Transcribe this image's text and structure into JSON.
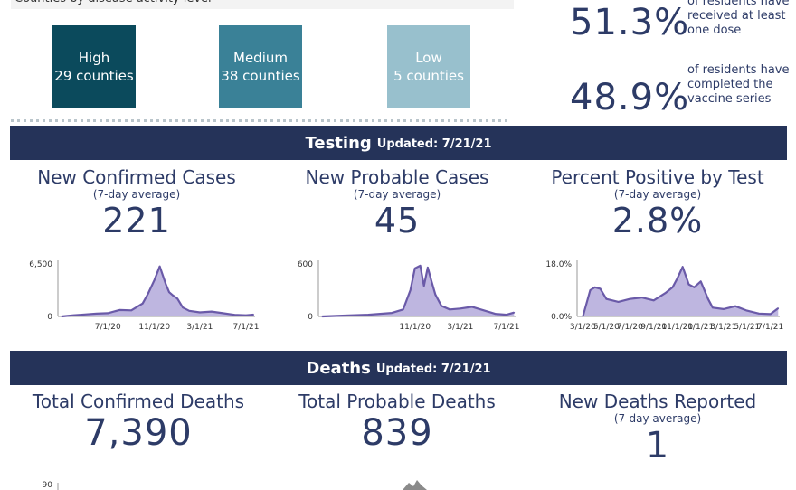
{
  "colors": {
    "band": "#253359",
    "high": "#0b4a5c",
    "medium": "#3a8197",
    "low": "#98c0cd",
    "area_fill": "#a89dd6",
    "area_line": "#6a5aa8"
  },
  "top_caption": "Counties by disease activity level",
  "activity": {
    "high": {
      "label": "High",
      "count": "29 counties"
    },
    "medium": {
      "label": "Medium",
      "count": "38 counties"
    },
    "low": {
      "label": "Low",
      "count": "5 counties"
    }
  },
  "vaccination": {
    "one_dose": {
      "pct": "51.3%",
      "desc": "of residents have received at least one dose"
    },
    "complete": {
      "pct": "48.9%",
      "desc": "of residents have completed the vaccine series"
    }
  },
  "testing": {
    "title": "Testing",
    "updated": "Updated: 7/21/21",
    "confirmed": {
      "title": "New Confirmed Cases",
      "sub": "(7-day average)",
      "value": "221"
    },
    "probable": {
      "title": "New Probable Cases",
      "sub": "(7-day average)",
      "value": "45"
    },
    "positive": {
      "title": "Percent Positive by Test",
      "sub": "(7-day average)",
      "value": "2.8%"
    }
  },
  "deaths": {
    "title": "Deaths",
    "updated": "Updated: 7/21/21",
    "confirmed": {
      "title": "Total Confirmed Deaths",
      "value": "7,390"
    },
    "probable": {
      "title": "Total Probable Deaths",
      "value": "839"
    },
    "new": {
      "title": "New Deaths Reported",
      "sub": "(7-day average)",
      "value": "1"
    }
  },
  "chart_data": [
    {
      "type": "area",
      "yticks": [
        "6,500",
        "0"
      ],
      "ylim": [
        0,
        6500
      ],
      "xticks": [
        "7/1/20",
        "11/1/20",
        "3/1/21",
        "7/1/21"
      ],
      "x": [
        "3/1/20",
        "4/1/20",
        "5/1/20",
        "6/1/20",
        "7/1/20",
        "8/1/20",
        "9/1/20",
        "10/1/20",
        "10/15/20",
        "11/1/20",
        "11/15/20",
        "12/1/20",
        "12/10/20",
        "12/20/20",
        "1/1/21",
        "1/15/21",
        "2/1/21",
        "3/1/21",
        "4/1/21",
        "5/1/21",
        "6/1/21",
        "7/1/21",
        "7/21/21"
      ],
      "values": [
        0,
        150,
        250,
        350,
        400,
        800,
        750,
        1600,
        2800,
        4500,
        6200,
        4000,
        3000,
        2600,
        2200,
        1100,
        700,
        500,
        600,
        400,
        200,
        150,
        221
      ]
    },
    {
      "type": "area",
      "yticks": [
        "600",
        "0"
      ],
      "ylim": [
        0,
        600
      ],
      "xticks": [
        "11/1/20",
        "3/1/21",
        "7/1/21"
      ],
      "x": [
        "3/1/20",
        "5/1/20",
        "7/1/20",
        "8/1/20",
        "9/1/20",
        "10/1/20",
        "10/20/20",
        "11/1/20",
        "11/15/20",
        "11/25/20",
        "12/5/20",
        "12/15/20",
        "12/25/20",
        "1/10/21",
        "2/1/21",
        "3/1/21",
        "4/1/21",
        "5/1/21",
        "6/1/21",
        "7/1/21",
        "7/21/21"
      ],
      "values": [
        0,
        10,
        20,
        30,
        40,
        80,
        300,
        550,
        580,
        350,
        560,
        400,
        250,
        120,
        80,
        90,
        110,
        70,
        30,
        20,
        45
      ]
    },
    {
      "type": "area",
      "yticks": [
        "18.0%",
        "0.0%"
      ],
      "ylim": [
        0,
        18
      ],
      "xticks": [
        "3/1/20",
        "5/1/20",
        "7/1/20",
        "9/1/20",
        "11/1/20",
        "1/1/21",
        "3/1/21",
        "5/1/21",
        "7/1/21"
      ],
      "x": [
        "3/1/20",
        "3/20/20",
        "4/1/20",
        "4/15/20",
        "5/1/20",
        "6/1/20",
        "7/1/20",
        "8/1/20",
        "9/1/20",
        "10/1/20",
        "10/20/20",
        "11/1/20",
        "11/15/20",
        "12/1/20",
        "12/15/20",
        "1/1/21",
        "1/20/21",
        "2/1/21",
        "3/1/21",
        "4/1/21",
        "5/1/21",
        "6/1/21",
        "7/1/21",
        "7/21/21"
      ],
      "values": [
        0,
        9,
        10,
        9.5,
        6,
        5,
        6,
        6.5,
        5.5,
        8,
        10,
        13,
        17,
        11,
        10,
        12,
        6,
        3,
        2.5,
        3.5,
        2,
        1,
        0.8,
        2.8
      ]
    },
    {
      "type": "area",
      "yticks": [
        "90"
      ],
      "ylim": [
        0,
        90
      ],
      "xticks": [],
      "x": [],
      "values": []
    }
  ]
}
